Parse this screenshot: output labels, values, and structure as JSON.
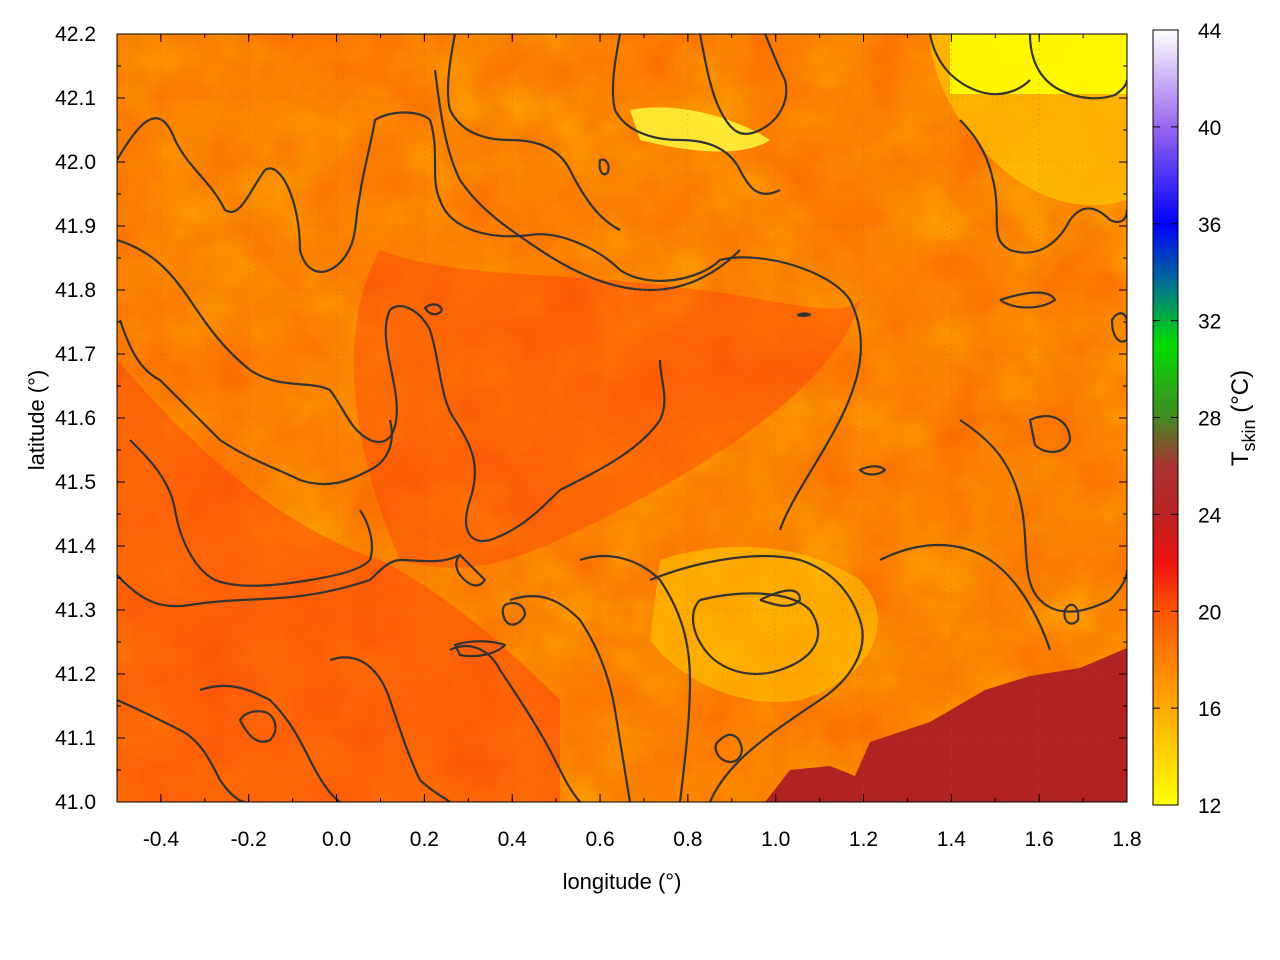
{
  "chart_data": {
    "type": "heatmap",
    "title": "",
    "xlabel": "longitude (°)",
    "ylabel": "latitude (°)",
    "xlim": [
      -0.5,
      1.8
    ],
    "ylim": [
      41.0,
      42.2
    ],
    "x_ticks": [
      "-0.4",
      "-0.2",
      "0.0",
      "0.2",
      "0.4",
      "0.6",
      "0.8",
      "1.0",
      "1.2",
      "1.4",
      "1.6",
      "1.8"
    ],
    "x_tick_values": [
      -0.4,
      -0.2,
      0.0,
      0.2,
      0.4,
      0.6,
      0.8,
      1.0,
      1.2,
      1.4,
      1.6,
      1.8
    ],
    "y_ticks": [
      "41.0",
      "41.1",
      "41.2",
      "41.3",
      "41.4",
      "41.5",
      "41.6",
      "41.7",
      "41.8",
      "41.9",
      "42.0",
      "42.1",
      "42.2"
    ],
    "y_tick_values": [
      41.0,
      41.1,
      41.2,
      41.3,
      41.4,
      41.5,
      41.6,
      41.7,
      41.8,
      41.9,
      42.0,
      42.1,
      42.2
    ],
    "grid": true,
    "colorbar": {
      "label_main": "T",
      "label_sub": "skin",
      "label_unit": " (°C)",
      "range": [
        12,
        44
      ],
      "ticks": [
        "12",
        "16",
        "20",
        "24",
        "28",
        "32",
        "36",
        "40",
        "44"
      ],
      "tick_values": [
        12,
        16,
        20,
        24,
        28,
        32,
        36,
        40,
        44
      ],
      "stops": [
        {
          "value": 12,
          "color": "#ffff00"
        },
        {
          "value": 16,
          "color": "#ffaa00"
        },
        {
          "value": 20,
          "color": "#ff5500"
        },
        {
          "value": 22,
          "color": "#ee1111"
        },
        {
          "value": 24,
          "color": "#bb2222"
        },
        {
          "value": 26,
          "color": "#aa3333"
        },
        {
          "value": 28,
          "color": "#448822"
        },
        {
          "value": 31,
          "color": "#00dd00"
        },
        {
          "value": 33,
          "color": "#008877"
        },
        {
          "value": 36,
          "color": "#0000ff"
        },
        {
          "value": 40,
          "color": "#9966ee"
        },
        {
          "value": 44,
          "color": "#ffffff"
        }
      ]
    },
    "sea_color": "#b22222",
    "contour_color": "#333333"
  }
}
